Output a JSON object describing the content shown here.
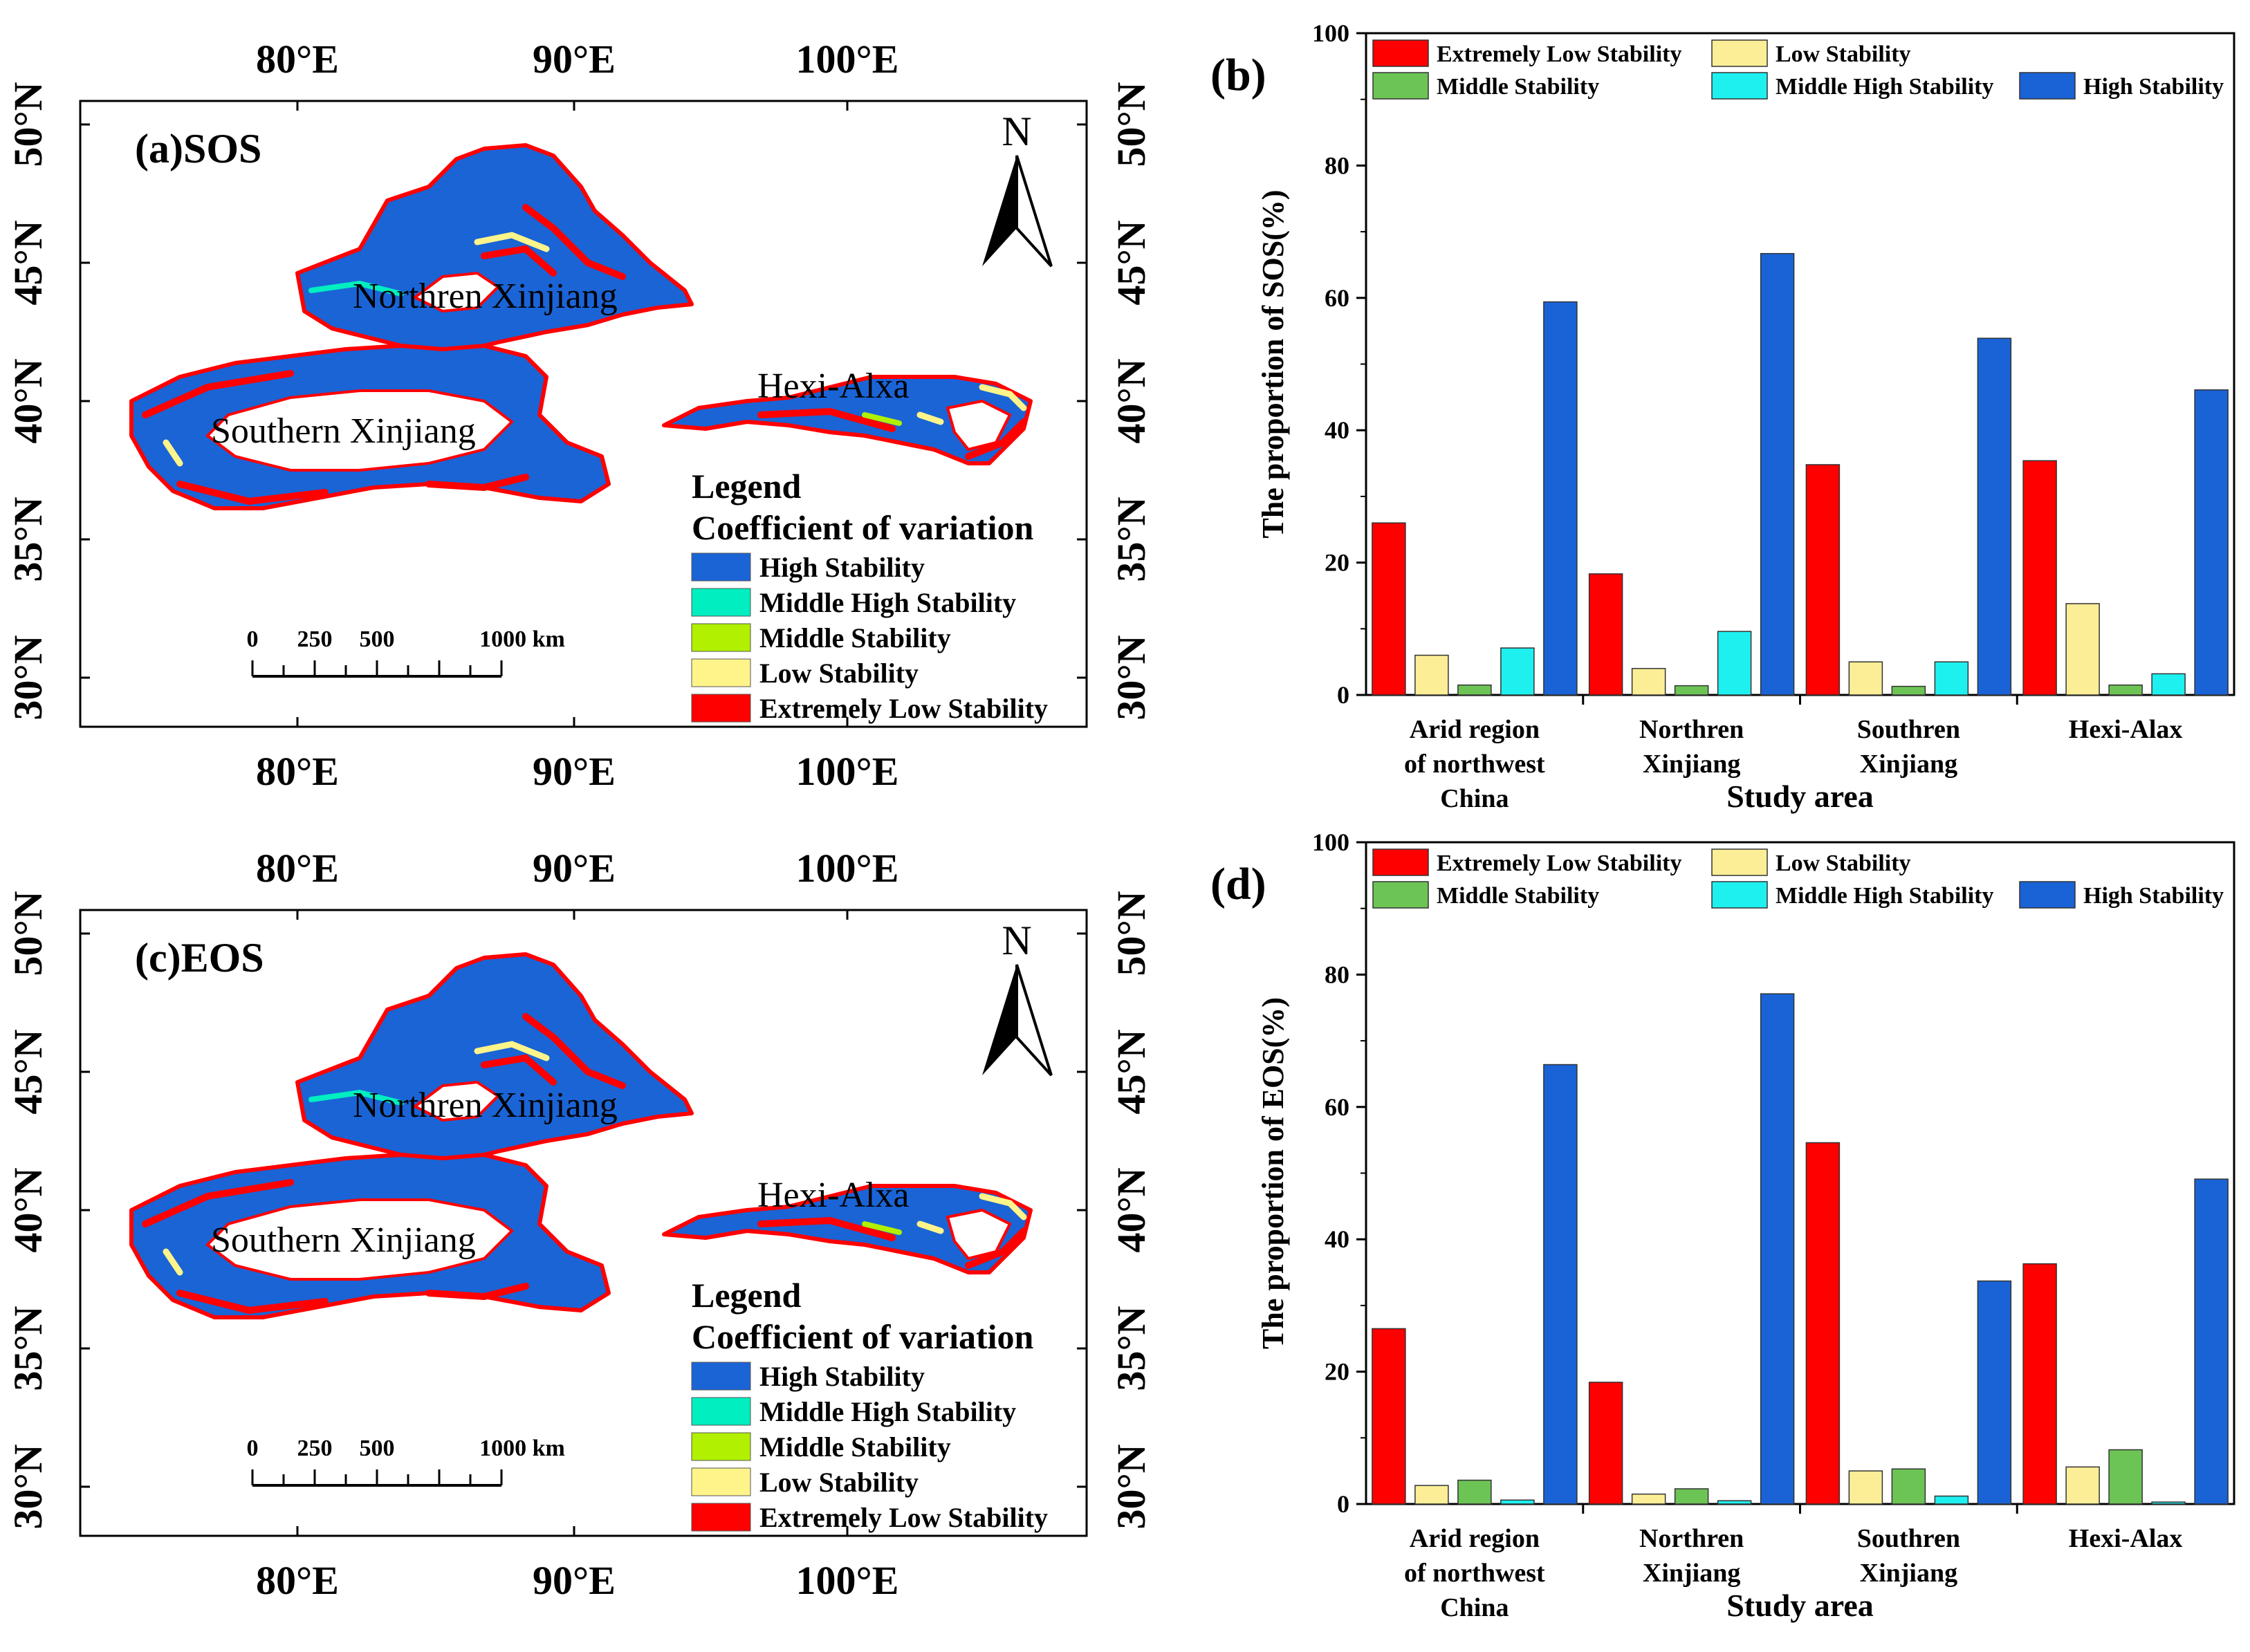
{
  "figure": {
    "map_labels": {
      "lon": [
        "80°E",
        "90°E",
        "100°E"
      ],
      "lat": [
        "50°N",
        "45°N",
        "40°N",
        "35°N",
        "30°N"
      ],
      "north": "N",
      "scale_ticks": [
        "0",
        "250",
        "500",
        "1000 km"
      ],
      "legend_title": "Legend",
      "legend_subtitle": "Coefficient of variation",
      "legend_items": [
        "High Stability",
        "Middle High Stability",
        "Middle Stability",
        "Low Stability",
        "Extremely Low Stability"
      ],
      "regions": {
        "north": "Northren Xinjiang",
        "south": "Southern Xinjiang",
        "hexi": "Hexi-Alxa"
      }
    },
    "maps": [
      {
        "panel_label": "(a)SOS"
      },
      {
        "panel_label": "(c)EOS"
      }
    ],
    "colors": {
      "high": "#1a64d6",
      "middle_high": "#00eec0",
      "middle": "#b0f000",
      "low": "#fff48a",
      "extremely_low": "#ff0000",
      "chart_red": "#ff0000",
      "chart_yellow": "#fcee96",
      "chart_green": "#6cc455",
      "chart_cyan": "#1ef0f0",
      "chart_blue": "#1a63d6"
    }
  },
  "chart_data": [
    {
      "type": "bar",
      "panel_label": "(b)",
      "title": "",
      "xlabel": "Study area",
      "ylabel": "The proportion of SOS(%)",
      "ylim": [
        0,
        100
      ],
      "yticks": [
        "0",
        "20",
        "40",
        "60",
        "80",
        "100"
      ],
      "categories": [
        [
          "Arid region",
          "of northwest",
          "China"
        ],
        [
          "Northren",
          "Xinjiang"
        ],
        [
          "Southren",
          "Xinjiang"
        ],
        [
          "Hexi-Alax"
        ]
      ],
      "series": [
        {
          "name": "Extremely Low Stability",
          "values": [
            26.0,
            18.3,
            34.8,
            35.4
          ]
        },
        {
          "name": "Low Stability",
          "values": [
            6.0,
            4.0,
            5.0,
            13.8
          ]
        },
        {
          "name": "Middle Stability",
          "values": [
            1.5,
            1.4,
            1.3,
            1.5
          ]
        },
        {
          "name": "Middle High Stability",
          "values": [
            7.1,
            9.6,
            5.0,
            3.2
          ]
        },
        {
          "name": "High Stability",
          "values": [
            59.4,
            66.7,
            53.9,
            46.1
          ]
        }
      ],
      "legend": "top"
    },
    {
      "type": "bar",
      "panel_label": "(d)",
      "title": "",
      "xlabel": "Study area",
      "ylabel": "The proportion of EOS(%)",
      "ylim": [
        0,
        100
      ],
      "yticks": [
        "0",
        "20",
        "40",
        "60",
        "80",
        "100"
      ],
      "categories": [
        [
          "Arid region",
          "of northwest",
          "China"
        ],
        [
          "Northren",
          "Xinjiang"
        ],
        [
          "Southren",
          "Xinjiang"
        ],
        [
          "Hexi-Alax"
        ]
      ],
      "series": [
        {
          "name": "Extremely Low Stability",
          "values": [
            26.5,
            18.4,
            54.6,
            36.3
          ]
        },
        {
          "name": "Low Stability",
          "values": [
            2.8,
            1.5,
            5.0,
            5.6
          ]
        },
        {
          "name": "Middle Stability",
          "values": [
            3.6,
            2.3,
            5.3,
            8.2
          ]
        },
        {
          "name": "Middle High Stability",
          "values": [
            0.6,
            0.5,
            1.2,
            0.3
          ]
        },
        {
          "name": "High Stability",
          "values": [
            66.4,
            77.1,
            33.7,
            49.1
          ]
        }
      ],
      "legend": "top"
    }
  ]
}
